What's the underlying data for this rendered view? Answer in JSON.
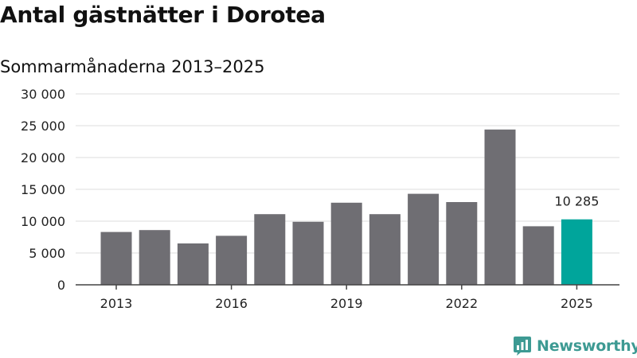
{
  "title": "Antal gästnätter i Dorotea",
  "subtitle": "Sommarmånaderna 2013–2025",
  "brand": {
    "name": "Newsworthy",
    "icon": "newsworthy-logo-icon",
    "color": "#3d9a93"
  },
  "chart_data": {
    "type": "bar",
    "categories": [
      "2013",
      "2014",
      "2015",
      "2016",
      "2017",
      "2018",
      "2019",
      "2020",
      "2021",
      "2022",
      "2023",
      "2024",
      "2025"
    ],
    "values": [
      8300,
      8600,
      6500,
      7700,
      11100,
      9900,
      12900,
      11100,
      14300,
      13000,
      24400,
      9200,
      10285
    ],
    "x_tick_labels": [
      "2013",
      "2016",
      "2019",
      "2022",
      "2025"
    ],
    "y_ticks": [
      0,
      5000,
      10000,
      15000,
      20000,
      25000,
      30000
    ],
    "y_tick_labels": [
      "0",
      "5 000",
      "10 000",
      "15 000",
      "20 000",
      "25 000",
      "30 000"
    ],
    "ylim": [
      0,
      30000
    ],
    "data_labels": [
      {
        "category": "2025",
        "text": "10 285"
      }
    ],
    "highlight": "2025",
    "colors": {
      "bar": "#6f6e73",
      "highlight": "#00a59b",
      "grid": "#dddddd",
      "axis": "#444444"
    },
    "grid": true,
    "xlabel": "",
    "ylabel": ""
  }
}
